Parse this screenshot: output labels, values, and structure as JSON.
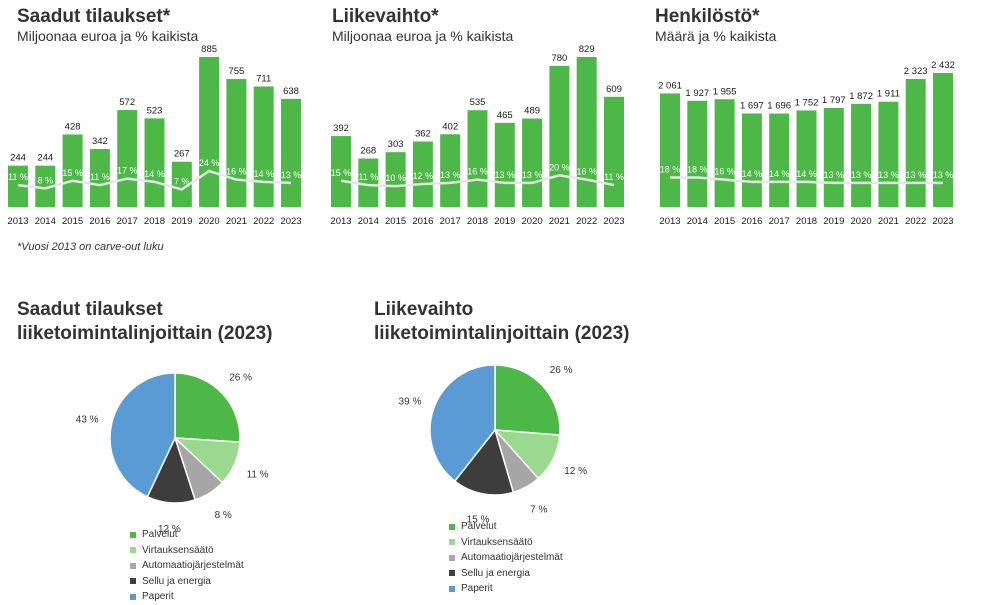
{
  "footnote": "*Vuosi 2013 on carve-out luku",
  "bar_charts": [
    {
      "title": "Saadut tilaukset*",
      "subtitle": "Miljoonaa euroa ja % kaikista"
    },
    {
      "title": "Liikevaihto*",
      "subtitle": "Miljoonaa euroa ja % kaikista"
    },
    {
      "title": "Henkilöstö*",
      "subtitle": "Määrä ja % kaikista"
    }
  ],
  "pie_charts": [
    {
      "title_line1": "Saadut tilaukset",
      "title_line2": "liiketoimintalinjoittain (2023)"
    },
    {
      "title_line1": "Liikevaihto",
      "title_line2": "liiketoimintalinjoittain (2023)"
    }
  ],
  "colors": {
    "bar": "#4db848",
    "line": "#e6e6e6",
    "palvelut": "#4db848",
    "virtaus": "#9ad98e",
    "automaatio": "#a6a6a6",
    "sellu": "#3d3d3d",
    "paperit": "#5b9bd5"
  },
  "chart_data": [
    {
      "type": "bar",
      "title": "Saadut tilaukset*",
      "subtitle": "Miljoonaa euroa ja % kaikista",
      "categories": [
        "2013",
        "2014",
        "2015",
        "2016",
        "2017",
        "2018",
        "2019",
        "2020",
        "2021",
        "2022",
        "2023"
      ],
      "values": [
        244,
        244,
        428,
        342,
        572,
        523,
        267,
        885,
        755,
        711,
        638
      ],
      "value_labels": [
        "244",
        "244",
        "428",
        "342",
        "572",
        "523",
        "267",
        "885",
        "755",
        "711",
        "638"
      ],
      "share_pct": [
        11,
        8,
        15,
        11,
        17,
        14,
        7,
        24,
        16,
        14,
        13
      ],
      "share_labels": [
        "11 %",
        "8 %",
        "15 %",
        "11 %",
        "17 %",
        "14 %",
        "7 %",
        "24 %",
        "16 %",
        "14 %",
        "13 %"
      ],
      "ylim": [
        0,
        950
      ]
    },
    {
      "type": "bar",
      "title": "Liikevaihto*",
      "subtitle": "Miljoonaa euroa ja % kaikista",
      "categories": [
        "2013",
        "2014",
        "2015",
        "2016",
        "2017",
        "2018",
        "2019",
        "2020",
        "2021",
        "2022",
        "2023"
      ],
      "values": [
        392,
        268,
        303,
        362,
        402,
        535,
        465,
        489,
        780,
        829,
        609
      ],
      "value_labels": [
        "392",
        "268",
        "303",
        "362",
        "402",
        "535",
        "465",
        "489",
        "780",
        "829",
        "609"
      ],
      "share_pct": [
        15,
        11,
        10,
        12,
        13,
        16,
        13,
        13,
        20,
        16,
        11
      ],
      "share_labels": [
        "15 %",
        "11 %",
        "10 %",
        "12 %",
        "13 %",
        "16 %",
        "13 %",
        "13 %",
        "20 %",
        "16 %",
        "11 %"
      ],
      "ylim": [
        0,
        880
      ]
    },
    {
      "type": "bar",
      "title": "Henkilöstö*",
      "subtitle": "Määrä ja % kaikista",
      "categories": [
        "2013",
        "2014",
        "2015",
        "2016",
        "2017",
        "2018",
        "2019",
        "2020",
        "2021",
        "2022",
        "2023"
      ],
      "values": [
        2061,
        1927,
        1955,
        1697,
        1696,
        1752,
        1797,
        1872,
        1911,
        2323,
        2432
      ],
      "value_labels": [
        "2 061",
        "1 927",
        "1 955",
        "1 697",
        "1 696",
        "1 752",
        "1 797",
        "1 872",
        "1 911",
        "2 323",
        "2 432"
      ],
      "share_pct": [
        18,
        18,
        16,
        14,
        14,
        14,
        13,
        13,
        13,
        13,
        13
      ],
      "share_labels": [
        "18 %",
        "18 %",
        "16 %",
        "14 %",
        "14 %",
        "14 %",
        "13 %",
        "13 %",
        "13 %",
        "13 %",
        "13 %"
      ],
      "ylim": [
        0,
        2540
      ]
    },
    {
      "type": "pie",
      "title": "Saadut tilaukset liiketoimintalinjoittain (2023)",
      "labels": [
        "Palvelut",
        "Virtauksensäätö",
        "Automaatiojärjestelmät",
        "Sellu ja energia",
        "Paperit"
      ],
      "values": [
        26,
        11,
        8,
        12,
        43
      ],
      "value_labels": [
        "26 %",
        "11 %",
        "8 %",
        "12 %",
        "43 %"
      ]
    },
    {
      "type": "pie",
      "title": "Liikevaihto liiketoimintalinjoittain (2023)",
      "labels": [
        "Palvelut",
        "Virtauksensäätö",
        "Automaatiojärjestelmät",
        "Sellu ja energia",
        "Paperit"
      ],
      "values": [
        26,
        12,
        7,
        15,
        39
      ],
      "value_labels": [
        "26 %",
        "12 %",
        "7 %",
        "15 %",
        "39 %"
      ]
    }
  ]
}
